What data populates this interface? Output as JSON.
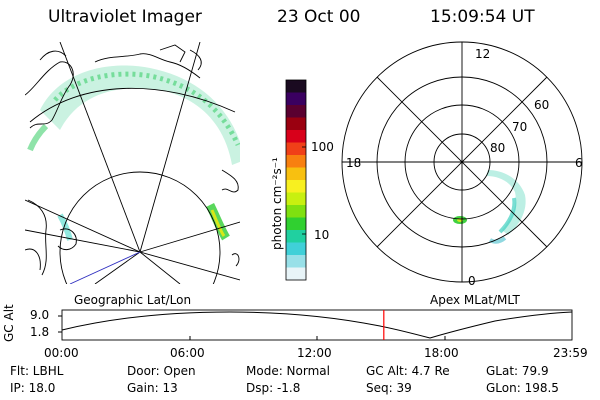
{
  "header": {
    "instrument": "Ultraviolet Imager",
    "date": "23 Oct 00",
    "time": "15:09:54 UT"
  },
  "left_panel": {
    "label": "Geographic Lat/Lon"
  },
  "right_panel": {
    "label": "Apex MLat/MLT",
    "mlt_labels": {
      "top": "12",
      "left": "18",
      "right": "6",
      "bottom": "0"
    },
    "lat_labels": [
      "60",
      "70",
      "80"
    ]
  },
  "colorbar": {
    "unit_label": "photon cm⁻²s⁻¹",
    "tick_labels": [
      "100",
      "10"
    ],
    "colors": [
      "#1a0a20",
      "#3a0060",
      "#5a0030",
      "#9a0010",
      "#d8001a",
      "#f04018",
      "#f88010",
      "#f8c010",
      "#f8f020",
      "#c8f010",
      "#80e010",
      "#30d030",
      "#20d0a0",
      "#40d0d8",
      "#98e0e8",
      "#e8f4f8"
    ]
  },
  "timeline": {
    "axis_label": "GC Alt",
    "y_ticks": [
      "9.0",
      "1.8"
    ],
    "x_ticks": [
      "00:00",
      "06:00",
      "12:00",
      "18:00",
      "23:59"
    ],
    "current_fraction": 0.631,
    "marker_color": "#ff0000"
  },
  "status": {
    "filter": "Flt: LBHL",
    "ip": "IP: 18.0",
    "door": "Door: Open",
    "gain": "Gain: 13",
    "mode": "Mode: Normal",
    "dsp": "Dsp:   -1.8",
    "gc_alt": "GC Alt: 4.7 Re",
    "seq": "Seq: 39",
    "glat": "GLat: 79.9",
    "glon": "GLon: 198.5"
  }
}
